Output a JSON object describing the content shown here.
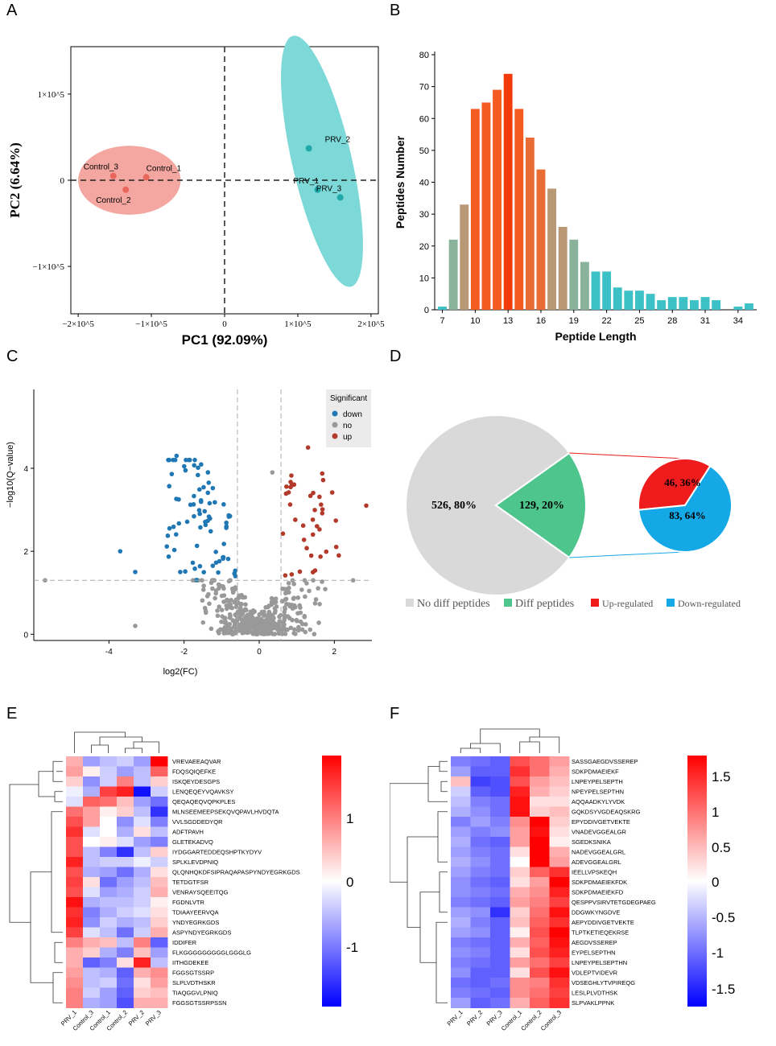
{
  "panel_labels": {
    "A": "A",
    "B": "B",
    "C": "C",
    "D": "D",
    "E": "E",
    "F": "F"
  },
  "colors": {
    "pca_control": "#f4a6a0",
    "pca_control_pt": "#e8665c",
    "pca_prv": "#7dd8d8",
    "pca_prv_pt": "#20a8a8",
    "volcano_down": "#1f77b4",
    "volcano_no": "#999999",
    "volcano_up": "#b33a2a",
    "pie_no": "#d9d9d9",
    "pie_diff": "#4ec58c",
    "pie_up": "#ee1c1c",
    "pie_down": "#15a8e6",
    "heat_high": "#ff0000",
    "heat_mid": "#ffffff",
    "heat_low": "#0000ff"
  },
  "chart_data": [
    {
      "id": "A",
      "type": "scatter",
      "xlabel": "PC1 (92.09%)",
      "ylabel": "PC2 (6.64%)",
      "xlim": [
        -210000,
        210000
      ],
      "ylim": [
        -155000,
        155000
      ],
      "xticks": [
        {
          "v": -200000,
          "label": "−2×10^5"
        },
        {
          "v": -100000,
          "label": "−1×10^5"
        },
        {
          "v": 0,
          "label": "0"
        },
        {
          "v": 100000,
          "label": "1×10^5"
        },
        {
          "v": 200000,
          "label": "2×10^5"
        }
      ],
      "yticks": [
        {
          "v": -100000,
          "label": "−1×10^5"
        },
        {
          "v": 0,
          "label": "0"
        },
        {
          "v": 100000,
          "label": "1×10^5"
        }
      ],
      "groups": [
        {
          "name": "Control",
          "points": [
            {
              "label": "Control_3",
              "x": -152000,
              "y": 5000
            },
            {
              "label": "Control_1",
              "x": -107000,
              "y": 3500
            },
            {
              "label": "Control_2",
              "x": -135000,
              "y": -11000
            }
          ]
        },
        {
          "name": "PRV",
          "points": [
            {
              "label": "PRV_2",
              "x": 115000,
              "y": 37000
            },
            {
              "label": "PRV_1",
              "x": 127000,
              "y": -11000
            },
            {
              "label": "PRV_3",
              "x": 158000,
              "y": -20000
            }
          ]
        }
      ]
    },
    {
      "id": "B",
      "type": "bar",
      "xlabel": "Peptide Length",
      "ylabel": "Peptides Number",
      "ylim": [
        0,
        80
      ],
      "yticks": [
        0,
        10,
        20,
        30,
        40,
        50,
        60,
        70,
        80
      ],
      "xticks": [
        7,
        10,
        13,
        16,
        19,
        22,
        25,
        28,
        31,
        34
      ],
      "categories": [
        7,
        8,
        9,
        10,
        11,
        12,
        13,
        14,
        15,
        16,
        17,
        18,
        19,
        20,
        21,
        22,
        23,
        24,
        25,
        26,
        27,
        28,
        29,
        30,
        31,
        32,
        33,
        34,
        35
      ],
      "values": [
        1,
        22,
        33,
        63,
        65,
        69,
        74,
        63,
        54,
        44,
        38,
        26,
        22,
        15,
        12,
        12,
        7,
        6,
        6,
        5,
        3,
        4,
        4,
        3,
        4,
        3,
        0,
        1,
        2
      ]
    },
    {
      "id": "C",
      "type": "scatter",
      "xlabel": "log2(FC)",
      "ylabel": "−log10(Q−value)",
      "xlim": [
        -6,
        3
      ],
      "ylim": [
        -0.15,
        5.9
      ],
      "xticks": [
        -4,
        -2,
        0,
        2
      ],
      "yticks": [
        0,
        2,
        4
      ],
      "legend_title": "Significant",
      "legend": [
        "down",
        "no",
        "up"
      ]
    },
    {
      "id": "D",
      "type": "pie",
      "main": [
        {
          "label": "No diff peptides",
          "value": 526,
          "text": "526, 80%"
        },
        {
          "label": "Diff peptides",
          "value": 129,
          "text": "129, 20%"
        }
      ],
      "sub": [
        {
          "label": "Up-regulated",
          "value": 46,
          "text": "46, 36%"
        },
        {
          "label": "Down-regulated",
          "value": 83,
          "text": "83, 64%"
        }
      ],
      "legend": [
        "No diff peptides",
        "Diff peptides",
        "Up-regulated",
        "Down-regulated"
      ]
    },
    {
      "id": "E",
      "type": "heatmap",
      "columns": [
        "PRV_1",
        "Control_3",
        "Control_1",
        "Control_2",
        "PRV_2",
        "PRV_3"
      ],
      "rows": [
        "VREVAEEAQVAR",
        "FDQSQIQEFKE",
        "ISKQEYDESGPS",
        "LENQEQEYVQAVKSY",
        "QEQAQEQVQPKPLES",
        "MLNSEEMEEPSEKQVQPAVLHVDQTA",
        "VVLSGDDEDYQR",
        "ADFTPAVH",
        "GLETEKADVQ",
        "IYDGGARTEDDEQSHPTKYDYV",
        "SPLKLEVDPNIQ",
        "QLQNHQKDFSIPRAQAPASPYNDYEGRKGDS",
        "TETDGTFSR",
        "VENRAYSQEEITQG",
        "FGDNLVTR",
        "TDIAAYEERVQA",
        "YNDYEGRKGDS",
        "ASPYNDYEGRKGDS",
        "IDDIFER",
        "FLKGGGGGGGGGLGGGLG",
        "IITHGDEKEE",
        "FGGSGTSSRP",
        "SLPLVDTHSKR",
        "TIAQGGVLPNIQ",
        "FGGSGTSSRPSSN"
      ],
      "legend_ticks": [
        "1",
        "0",
        "-1"
      ],
      "values": [
        [
          0.5,
          -0.6,
          -0.4,
          -0.3,
          -0.6,
          1.6
        ],
        [
          0.6,
          0.1,
          -0.3,
          -0.6,
          -0.4,
          1.0
        ],
        [
          0.3,
          -0.7,
          -0.3,
          0.8,
          -0.4,
          0.3
        ],
        [
          -0.1,
          -0.5,
          1.2,
          1.4,
          -1.5,
          -0.3
        ],
        [
          -0.2,
          1.0,
          0.9,
          0.4,
          -0.6,
          -0.9
        ],
        [
          0.9,
          0.6,
          0.1,
          0.3,
          -0.4,
          -1.3
        ],
        [
          1.1,
          0.6,
          0.0,
          -0.7,
          -0.2,
          -0.8
        ],
        [
          1.3,
          -0.2,
          0.0,
          -0.5,
          0.2,
          -0.4
        ],
        [
          1.1,
          0.0,
          0.1,
          -0.2,
          -0.6,
          -0.8
        ],
        [
          1.1,
          -0.4,
          -0.8,
          -1.3,
          -0.4,
          0.3
        ],
        [
          1.4,
          -0.4,
          -0.3,
          -0.3,
          -0.1,
          -0.3
        ],
        [
          1.1,
          -0.5,
          -0.6,
          -0.9,
          -0.5,
          0.2
        ],
        [
          1.2,
          0.2,
          -0.9,
          -0.6,
          -0.4,
          0.4
        ],
        [
          1.1,
          -0.2,
          -0.6,
          -0.5,
          -0.3,
          0.5
        ],
        [
          1.5,
          -0.5,
          -0.4,
          -0.4,
          -0.3,
          0.1
        ],
        [
          1.3,
          -0.8,
          -0.5,
          -0.3,
          -0.2,
          0.2
        ],
        [
          1.4,
          -0.7,
          -0.3,
          -0.5,
          -0.4,
          0.3
        ],
        [
          1.2,
          -0.2,
          -0.4,
          -0.9,
          -0.3,
          0.5
        ],
        [
          0.8,
          0.5,
          0.4,
          -0.4,
          0.8,
          -1.0
        ],
        [
          0.5,
          0.3,
          -0.5,
          -0.8,
          0.4,
          -0.6
        ],
        [
          0.5,
          -1.0,
          -0.8,
          0.2,
          1.4,
          -0.4
        ],
        [
          0.6,
          -0.4,
          -0.5,
          -1.0,
          0.5,
          0.7
        ],
        [
          0.7,
          -0.4,
          -0.3,
          -0.9,
          0.2,
          0.6
        ],
        [
          0.8,
          -0.3,
          -0.6,
          -1.0,
          0.3,
          0.4
        ],
        [
          0.8,
          -0.5,
          -0.6,
          -1.1,
          0.5,
          0.5
        ]
      ]
    },
    {
      "id": "F",
      "type": "heatmap",
      "columns": [
        "PRV_1",
        "PRV_2",
        "PRV_3",
        "Control_1",
        "Control_2",
        "Control_3"
      ],
      "rows": [
        "SASSGAEGDVSSEREP",
        "SDKPDMAEIEKF",
        "LNPEYPELSEPTH",
        "NPEYPELSEPTHN",
        "AQQAADKYLYVDK",
        "GQKDSYVGDEAQSKRG",
        "EPYDDIVGETVEKTE",
        "VNADEVGGEALGR",
        "SGEDKSNIKA",
        "NADEVGGEALGRL",
        "ADEVGGEALGRL",
        "IEELLVPSKEQH",
        "SDKPDMAEIEKFDK",
        "SDKPDMAEIEKFD",
        "QESPPVSIRVTETGDEGPAEG",
        "DDGWKYNGDVE",
        "AEPYDDIVGETVEKTE",
        "TLPTKETIEQEKRSE",
        "AEGDVSSEREP",
        "EYPELSEPTHN",
        "LNPEYPELSEPTHN",
        "VDLEPTVIDEVR",
        "VDSEGHLYTVPIREQG",
        "LESLPLVDTHSK",
        "SLPVAKLPPNK"
      ],
      "legend_ticks": [
        "1.5",
        "1",
        "0.5",
        "0",
        "-0.5",
        "-1",
        "-1.5"
      ],
      "values": [
        [
          -0.8,
          -0.9,
          -1.0,
          1.1,
          0.9,
          0.6
        ],
        [
          -0.6,
          -1.0,
          -1.0,
          1.3,
          0.9,
          0.5
        ],
        [
          0.4,
          -1.2,
          -1.1,
          1.1,
          0.6,
          0.4
        ],
        [
          -0.3,
          -1.0,
          -1.1,
          1.4,
          0.5,
          0.3
        ],
        [
          -0.4,
          -0.8,
          -0.9,
          1.5,
          0.2,
          0.2
        ],
        [
          -0.5,
          -0.7,
          -0.9,
          1.5,
          0.3,
          0.4
        ],
        [
          -0.8,
          -0.6,
          -0.8,
          0.7,
          1.6,
          0.3
        ],
        [
          -0.6,
          -0.8,
          -0.7,
          0.6,
          1.5,
          0.2
        ],
        [
          -0.5,
          -0.9,
          -1.0,
          0.6,
          1.6,
          0.1
        ],
        [
          -0.6,
          -0.8,
          -0.9,
          0.2,
          1.6,
          0.5
        ],
        [
          -0.5,
          -0.7,
          -0.9,
          0.0,
          1.6,
          0.6
        ],
        [
          -0.6,
          -0.8,
          -0.9,
          0.3,
          1.0,
          1.3
        ],
        [
          -0.7,
          -0.9,
          -1.0,
          0.2,
          0.6,
          1.6
        ],
        [
          -0.7,
          -0.8,
          -0.9,
          0.5,
          0.7,
          1.4
        ],
        [
          -0.8,
          -0.9,
          -1.0,
          0.6,
          0.8,
          1.2
        ],
        [
          -0.6,
          -0.7,
          -1.3,
          0.3,
          0.9,
          1.5
        ],
        [
          -0.5,
          -0.8,
          -1.0,
          0.4,
          1.0,
          1.3
        ],
        [
          -0.6,
          -0.7,
          -1.0,
          0.1,
          1.1,
          1.6
        ],
        [
          -0.8,
          -0.9,
          -1.0,
          0.5,
          1.0,
          1.5
        ],
        [
          -0.7,
          -0.8,
          -1.0,
          0.2,
          1.1,
          1.4
        ],
        [
          -0.8,
          -0.9,
          -1.0,
          0.6,
          0.9,
          1.2
        ],
        [
          -0.7,
          -1.0,
          -1.0,
          0.2,
          1.1,
          1.5
        ],
        [
          -0.9,
          -1.0,
          -0.9,
          0.7,
          0.8,
          1.3
        ],
        [
          -0.8,
          -0.9,
          -1.0,
          0.7,
          0.9,
          1.2
        ],
        [
          -0.6,
          -1.0,
          -0.9,
          0.5,
          1.0,
          1.3
        ]
      ]
    }
  ]
}
